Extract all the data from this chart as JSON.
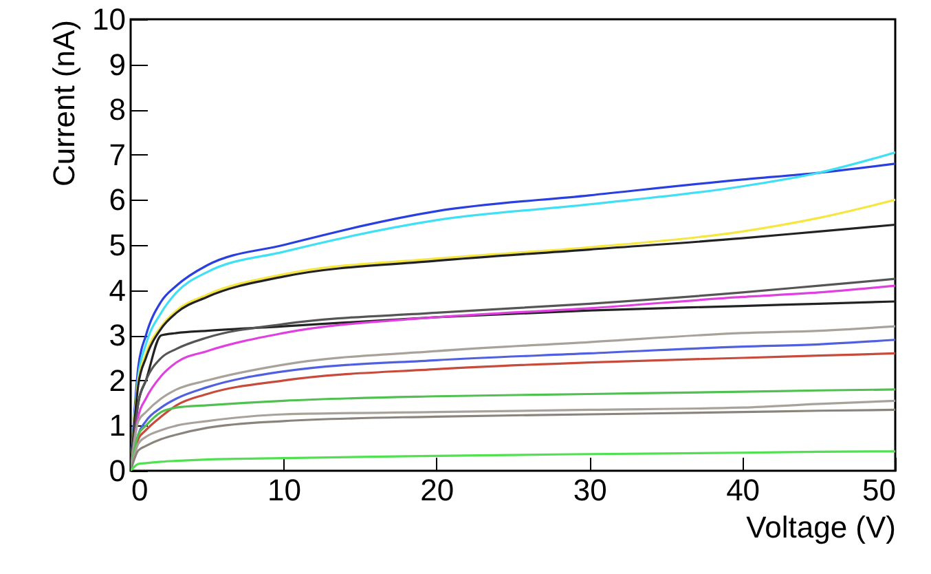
{
  "chart_data": {
    "type": "line",
    "xlabel": "Voltage (V)",
    "ylabel": "Current (nA)",
    "x": [
      0,
      0.5,
      1,
      2,
      3,
      5,
      10,
      20,
      30,
      40,
      45,
      50
    ],
    "xlim": [
      0,
      50
    ],
    "ylim": [
      0,
      10
    ],
    "xticks": [
      0,
      10,
      20,
      30,
      40,
      50
    ],
    "yticks": [
      0,
      1,
      2,
      3,
      4,
      5,
      6,
      7,
      8,
      9,
      10
    ],
    "series": [
      {
        "color": "#2a3fe0",
        "values": [
          0,
          2.3,
          3.0,
          3.75,
          4.1,
          4.55,
          5.0,
          5.75,
          6.1,
          6.45,
          6.6,
          6.8
        ]
      },
      {
        "color": "#3fe0f5",
        "values": [
          0,
          2.1,
          2.8,
          3.5,
          3.95,
          4.4,
          4.85,
          5.55,
          5.9,
          6.3,
          6.6,
          7.05
        ]
      },
      {
        "color": "#f5e640",
        "values": [
          0,
          2.0,
          2.6,
          3.2,
          3.55,
          3.9,
          4.35,
          4.7,
          4.95,
          5.3,
          5.6,
          6.0
        ]
      },
      {
        "color": "#222222",
        "values": [
          0,
          1.9,
          2.5,
          3.15,
          3.5,
          3.85,
          4.3,
          4.65,
          4.9,
          5.15,
          5.3,
          5.45
        ]
      },
      {
        "color": "#222222",
        "values": [
          0,
          1.5,
          2.0,
          3.0,
          3.05,
          3.1,
          3.2,
          3.4,
          3.55,
          3.65,
          3.7,
          3.75
        ]
      },
      {
        "color": "#555555",
        "values": [
          0,
          1.5,
          2.0,
          2.5,
          2.7,
          2.95,
          3.25,
          3.5,
          3.7,
          3.95,
          4.1,
          4.25
        ]
      },
      {
        "color": "#e040e0",
        "values": [
          0,
          1.2,
          1.6,
          2.1,
          2.4,
          2.65,
          3.05,
          3.4,
          3.6,
          3.85,
          3.95,
          4.1
        ]
      },
      {
        "color": "#a8a29a",
        "values": [
          0,
          1.1,
          1.3,
          1.6,
          1.8,
          2.0,
          2.35,
          2.65,
          2.85,
          3.05,
          3.1,
          3.2
        ]
      },
      {
        "color": "#5060e0",
        "values": [
          0,
          0.8,
          1.1,
          1.4,
          1.6,
          1.85,
          2.2,
          2.45,
          2.6,
          2.75,
          2.8,
          2.9
        ]
      },
      {
        "color": "#c84a3a",
        "values": [
          0,
          0.7,
          0.9,
          1.2,
          1.45,
          1.7,
          2.0,
          2.25,
          2.4,
          2.5,
          2.55,
          2.6
        ]
      },
      {
        "color": "#50c050",
        "values": [
          0,
          0.8,
          1.0,
          1.3,
          1.4,
          1.45,
          1.55,
          1.65,
          1.7,
          1.75,
          1.78,
          1.8
        ]
      },
      {
        "color": "#a8a29a",
        "values": [
          0,
          0.6,
          0.75,
          0.9,
          1.0,
          1.1,
          1.25,
          1.3,
          1.35,
          1.4,
          1.48,
          1.55
        ]
      },
      {
        "color": "#8a847c",
        "values": [
          0,
          0.45,
          0.55,
          0.7,
          0.8,
          0.95,
          1.1,
          1.2,
          1.25,
          1.3,
          1.33,
          1.35
        ]
      },
      {
        "color": "#50e050",
        "values": [
          0,
          0.15,
          0.17,
          0.2,
          0.22,
          0.25,
          0.28,
          0.33,
          0.37,
          0.4,
          0.42,
          0.43
        ]
      }
    ]
  }
}
